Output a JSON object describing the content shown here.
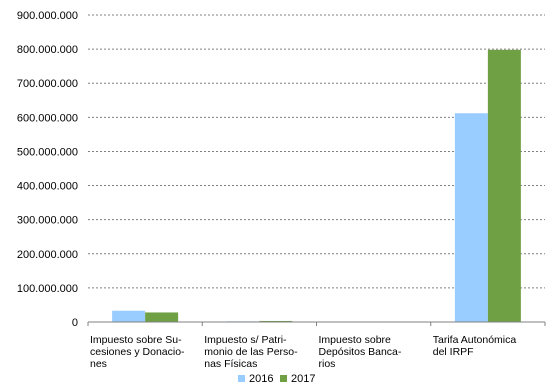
{
  "chart_data": {
    "type": "bar",
    "title": "",
    "xlabel": "",
    "ylabel": "",
    "categories": [
      [
        "Impuesto sobre Su-",
        "cesiones y Donacio-",
        "nes"
      ],
      [
        "Impuesto s/ Patri-",
        "monio de las Perso-",
        "nas Físicas"
      ],
      [
        "Impuesto sobre",
        "Depósitos Banca-",
        "rios"
      ],
      [
        "Tarifa Autonómica",
        "del IRPF"
      ]
    ],
    "series": [
      {
        "name": "2016",
        "color": "#99ccff",
        "values": [
          33000000,
          2000000,
          1500000,
          612000000
        ]
      },
      {
        "name": "2017",
        "color": "#70a044",
        "values": [
          28000000,
          3000000,
          1000000,
          798000000
        ]
      }
    ],
    "ylim": [
      0,
      900000000
    ],
    "yticks": [
      0,
      100000000,
      200000000,
      300000000,
      400000000,
      500000000,
      600000000,
      700000000,
      800000000,
      900000000
    ],
    "ytick_labels": [
      "0",
      "100.000.000",
      "200.000.000",
      "300.000.000",
      "400.000.000",
      "500.000.000",
      "600.000.000",
      "700.000.000",
      "800.000.000",
      "900.000.000"
    ],
    "grid": true,
    "legend_position": "bottom"
  }
}
